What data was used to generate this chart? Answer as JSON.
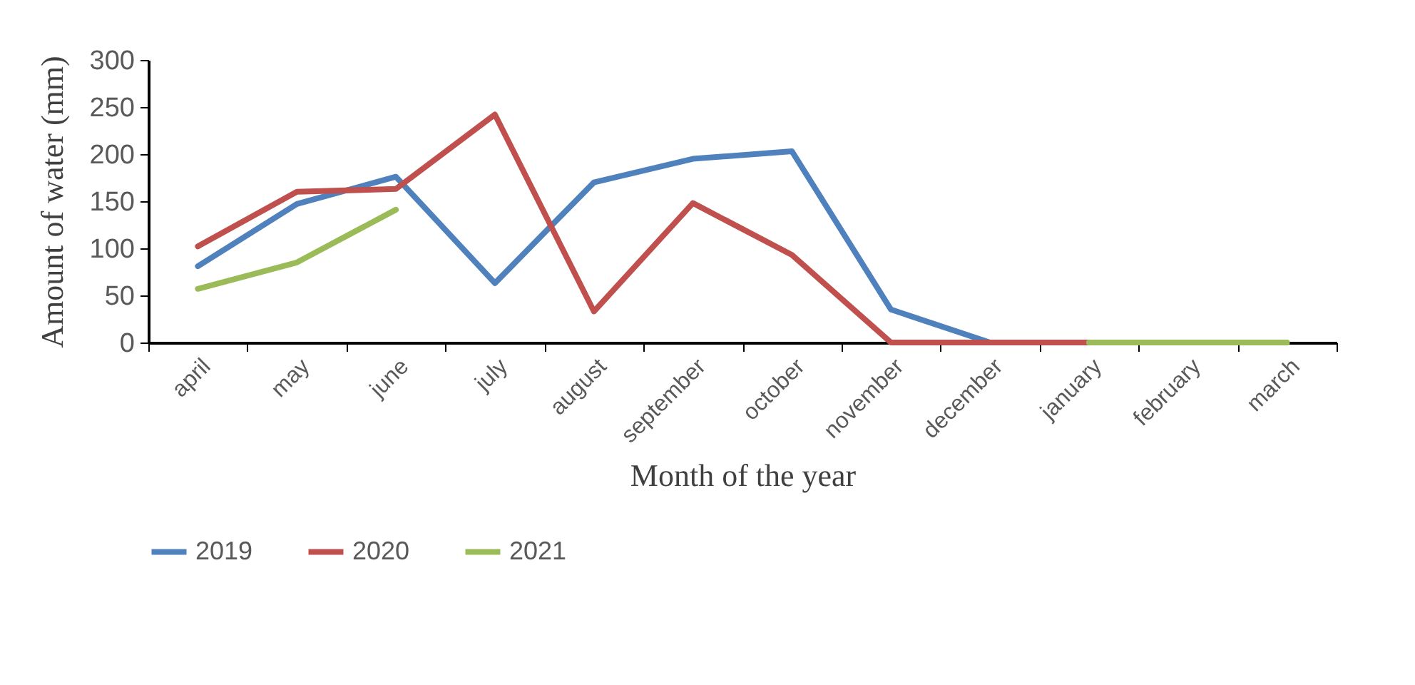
{
  "chart_data": {
    "type": "line",
    "xlabel": "Month of the year",
    "ylabel": "Amount of water (mm)",
    "categories": [
      "april",
      "may",
      "june",
      "july",
      "august",
      "september",
      "october",
      "november",
      "december",
      "january",
      "february",
      "march"
    ],
    "series": [
      {
        "name": "2019",
        "color": "#4f81bd",
        "values": [
          81,
          147,
          176,
          63,
          170,
          195,
          203,
          35,
          0,
          null,
          null,
          null
        ]
      },
      {
        "name": "2020",
        "color": "#c0504d",
        "values": [
          102,
          160,
          163,
          242,
          33,
          148,
          93,
          0,
          0,
          0,
          null,
          null
        ]
      },
      {
        "name": "2021",
        "color": "#9bbb59",
        "values": [
          57,
          85,
          141,
          null,
          null,
          null,
          null,
          null,
          null,
          0,
          0,
          0
        ]
      }
    ],
    "ylim": [
      0,
      300
    ],
    "yticks": [
      0,
      50,
      100,
      150,
      200,
      250,
      300
    ],
    "grid": false,
    "legend": "bottom",
    "marker": "none",
    "line_style": "solid"
  }
}
